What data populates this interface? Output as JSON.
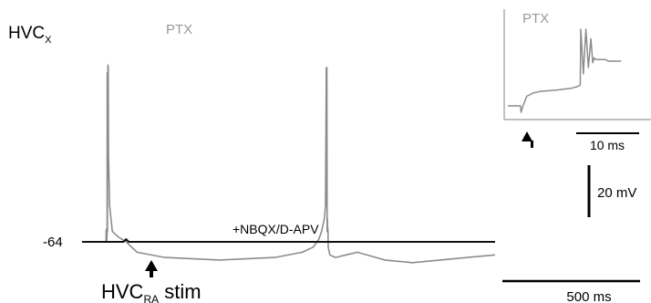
{
  "chart_data": {
    "type": "line",
    "main": {
      "cell_label": "HVC",
      "cell_label_subscript": "X",
      "stim_label": "HVC",
      "stim_label_subscript": "RA",
      "stim_label_suffix": " stim",
      "resting_potential_label": "-64",
      "series": [
        {
          "name": "PTX",
          "color": "#8c8c8c",
          "t_ms": [
            0,
            80,
            87,
            87.5,
            89,
            90,
            91,
            91.5,
            92,
            93,
            94,
            95,
            96,
            100,
            110,
            130,
            160,
            200,
            300,
            500,
            700,
            800,
            840,
            860,
            870,
            880,
            884,
            887,
            888,
            889,
            890,
            891,
            892,
            893,
            894,
            896,
            900,
            920,
            1000,
            1100,
            1200,
            1300,
            1400,
            1500
          ],
          "mV": [
            -64,
            -64,
            -64,
            -60,
            -59,
            -64,
            -60,
            1,
            -60,
            -10,
            4,
            3,
            -30,
            -50,
            -60,
            -62,
            -64,
            -68,
            -70,
            -71,
            -70,
            -68,
            -66,
            -63,
            -60,
            -55,
            -50,
            3,
            -50,
            3,
            -60,
            -55,
            -60,
            -59,
            -66,
            -67,
            -69,
            -70,
            -68,
            -71,
            -72,
            -71,
            -70,
            -69
          ]
        },
        {
          "name": "+NBQX/D-APV",
          "color": "#111111",
          "t_ms": [
            0,
            150,
            160,
            170,
            400,
            800,
            1200,
            1500
          ],
          "mV": [
            -64,
            -64,
            -63,
            -64,
            -64,
            -64,
            -64,
            -64
          ]
        }
      ],
      "scale_bars": {
        "time": {
          "value": 500,
          "label": "500 ms"
        },
        "voltage": {
          "value": 20,
          "label": "20 mV"
        }
      }
    },
    "inset": {
      "label": "PTX",
      "color": "#8c8c8c",
      "t_ms": [
        0,
        1,
        2,
        2.1,
        2.4,
        3,
        4,
        5,
        8,
        10,
        11,
        11.5,
        11.6,
        12,
        12.4,
        12.8,
        13.2,
        13.5,
        13.7,
        14,
        14.3,
        14.6,
        15,
        15.5,
        16,
        18
      ],
      "mV": [
        0,
        0,
        0,
        -4,
        0,
        6,
        8,
        9,
        10,
        11,
        12,
        13,
        48,
        20,
        48,
        24,
        42,
        27,
        30,
        29,
        29,
        29,
        29,
        29,
        28,
        28
      ],
      "scale_bar": {
        "value": 10,
        "label": "10 ms"
      }
    }
  }
}
